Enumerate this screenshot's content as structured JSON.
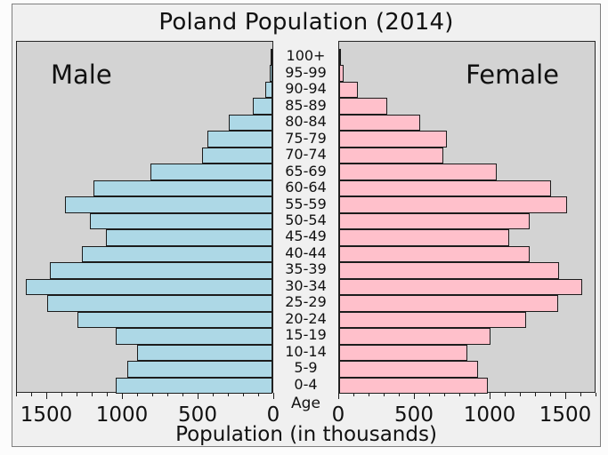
{
  "chart_data": {
    "type": "bar",
    "subtype": "population-pyramid",
    "title": "Poland Population (2014)",
    "xlabel": "Population (in thousands)",
    "center_axis_label": "Age",
    "categories": [
      "100+",
      "95-99",
      "90-94",
      "85-89",
      "80-84",
      "75-79",
      "70-74",
      "65-69",
      "60-64",
      "55-59",
      "50-54",
      "45-49",
      "40-44",
      "35-39",
      "30-34",
      "25-29",
      "20-24",
      "15-19",
      "10-14",
      "5-9",
      "0-4"
    ],
    "series": [
      {
        "name": "Male",
        "side": "left",
        "color": "#add8e6",
        "values": [
          2,
          20,
          45,
          130,
          290,
          430,
          470,
          810,
          1190,
          1380,
          1215,
          1105,
          1270,
          1480,
          1640,
          1500,
          1300,
          1045,
          900,
          965,
          1040
        ]
      },
      {
        "name": "Female",
        "side": "right",
        "color": "#ffc0cb",
        "values": [
          8,
          30,
          125,
          320,
          540,
          715,
          695,
          1050,
          1410,
          1515,
          1270,
          1130,
          1265,
          1465,
          1615,
          1460,
          1245,
          1005,
          855,
          925,
          990
        ]
      }
    ],
    "xlim": [
      0,
      1700
    ],
    "x_major_ticks": [
      0,
      500,
      1000,
      1500
    ],
    "x_minor_tick_step": 100,
    "grid": false,
    "legend_position": "in-panel-top",
    "colors": {
      "male_bar": "#add8e6",
      "female_bar": "#ffc0cb",
      "bar_edge": "#1c1c1c",
      "panel_bg": "#d3d3d3",
      "figure_bg": "#f0f0f0",
      "figure_border": "#7f7f7f",
      "axis": "#262626",
      "text": "#111111"
    }
  }
}
